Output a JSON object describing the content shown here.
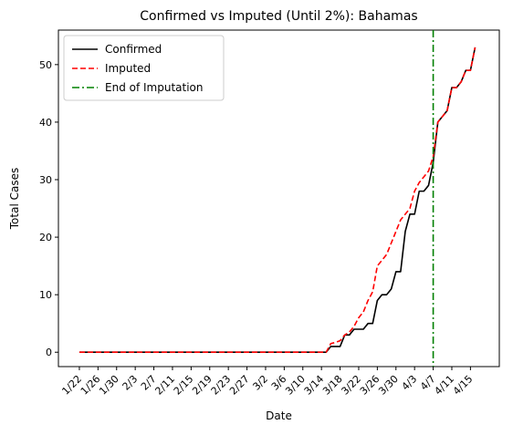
{
  "chart_data": {
    "type": "line",
    "title": "Confirmed vs Imputed (Until 2%): Bahamas",
    "xlabel": "Date",
    "ylabel": "Total Cases",
    "x_tick_labels": [
      "1/22",
      "1/26",
      "1/30",
      "2/3",
      "2/7",
      "2/11",
      "2/15",
      "2/19",
      "2/23",
      "2/27",
      "3/2",
      "3/6",
      "3/10",
      "3/14",
      "3/18",
      "3/22",
      "3/26",
      "3/30",
      "4/3",
      "4/7",
      "4/11",
      "4/15"
    ],
    "y_ticks": [
      0,
      10,
      20,
      30,
      40,
      50
    ],
    "ylim": [
      -2.5,
      56
    ],
    "grid": false,
    "legend_position": "top-left",
    "x_start_date": "2020-01-22",
    "x_end_date": "2020-04-17",
    "series": [
      {
        "name": "Confirmed",
        "color": "#000000",
        "style": "solid",
        "points": [
          [
            "2020-01-22",
            0
          ],
          [
            "2020-03-15",
            0
          ],
          [
            "2020-03-16",
            1
          ],
          [
            "2020-03-17",
            1
          ],
          [
            "2020-03-18",
            1
          ],
          [
            "2020-03-19",
            3
          ],
          [
            "2020-03-20",
            3
          ],
          [
            "2020-03-21",
            4
          ],
          [
            "2020-03-22",
            4
          ],
          [
            "2020-03-23",
            4
          ],
          [
            "2020-03-24",
            5
          ],
          [
            "2020-03-25",
            5
          ],
          [
            "2020-03-26",
            9
          ],
          [
            "2020-03-27",
            10
          ],
          [
            "2020-03-28",
            10
          ],
          [
            "2020-03-29",
            11
          ],
          [
            "2020-03-30",
            14
          ],
          [
            "2020-03-31",
            14
          ],
          [
            "2020-04-01",
            21
          ],
          [
            "2020-04-02",
            24
          ],
          [
            "2020-04-03",
            24
          ],
          [
            "2020-04-04",
            28
          ],
          [
            "2020-04-05",
            28
          ],
          [
            "2020-04-06",
            29
          ],
          [
            "2020-04-07",
            33
          ],
          [
            "2020-04-08",
            40
          ],
          [
            "2020-04-09",
            41
          ],
          [
            "2020-04-10",
            42
          ],
          [
            "2020-04-11",
            46
          ],
          [
            "2020-04-12",
            46
          ],
          [
            "2020-04-13",
            47
          ],
          [
            "2020-04-14",
            49
          ],
          [
            "2020-04-15",
            49
          ],
          [
            "2020-04-16",
            53
          ]
        ]
      },
      {
        "name": "Imputed",
        "color": "#ff0000",
        "style": "dashed",
        "points": [
          [
            "2020-01-22",
            0
          ],
          [
            "2020-03-15",
            0
          ],
          [
            "2020-03-16",
            1.5
          ],
          [
            "2020-03-17",
            1.7
          ],
          [
            "2020-03-18",
            2
          ],
          [
            "2020-03-19",
            3
          ],
          [
            "2020-03-20",
            3.5
          ],
          [
            "2020-03-21",
            4.5
          ],
          [
            "2020-03-22",
            6
          ],
          [
            "2020-03-23",
            7
          ],
          [
            "2020-03-24",
            9
          ],
          [
            "2020-03-25",
            10.5
          ],
          [
            "2020-03-26",
            15
          ],
          [
            "2020-03-27",
            16
          ],
          [
            "2020-03-28",
            17
          ],
          [
            "2020-03-29",
            19
          ],
          [
            "2020-03-30",
            21
          ],
          [
            "2020-03-31",
            23
          ],
          [
            "2020-04-01",
            24
          ],
          [
            "2020-04-02",
            25
          ],
          [
            "2020-04-03",
            28
          ],
          [
            "2020-04-04",
            29.5
          ],
          [
            "2020-04-05",
            30.5
          ],
          [
            "2020-04-06",
            31.5
          ],
          [
            "2020-04-07",
            34
          ],
          [
            "2020-04-08",
            40
          ],
          [
            "2020-04-09",
            41
          ],
          [
            "2020-04-10",
            42
          ],
          [
            "2020-04-11",
            46
          ],
          [
            "2020-04-12",
            46
          ],
          [
            "2020-04-13",
            47
          ],
          [
            "2020-04-14",
            49
          ],
          [
            "2020-04-15",
            49
          ],
          [
            "2020-04-16",
            53
          ]
        ]
      }
    ],
    "vertical_line": {
      "name": "End of Imputation",
      "x": "2020-04-07",
      "color": "#008000",
      "style": "dashdot"
    }
  }
}
